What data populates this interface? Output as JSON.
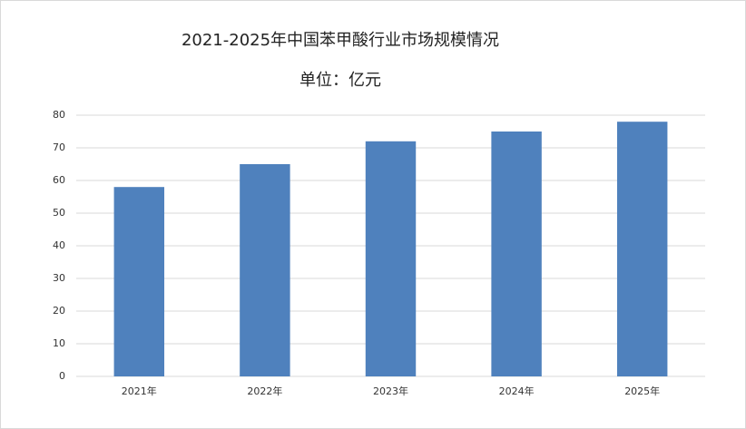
{
  "chart_data": {
    "type": "bar",
    "title": "2021-2025年中国苯甲酸行业市场规模情况",
    "subtitle": "单位：亿元",
    "categories": [
      "2021年",
      "2022年",
      "2023年",
      "2024年",
      "2025年"
    ],
    "values": [
      58,
      65,
      72,
      75,
      78
    ],
    "color": "#4f81bd",
    "ylim": [
      0,
      80
    ],
    "yticks": [
      0,
      10,
      20,
      30,
      40,
      50,
      60,
      70,
      80
    ],
    "grid": true
  }
}
